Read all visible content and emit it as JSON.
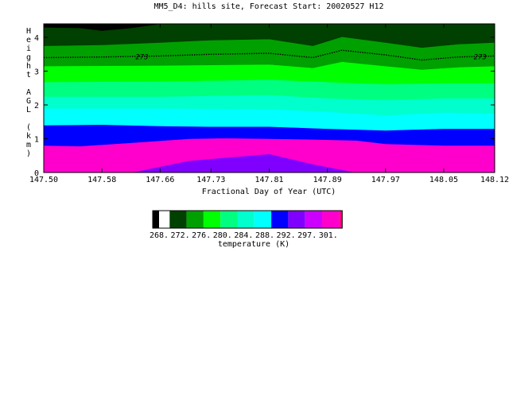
{
  "chart_data": {
    "type": "heatmap",
    "title": "MM5_D4: hills site,  Forecast Start: 20020527 H12",
    "xlabel": "Fractional Day of Year (UTC)",
    "ylabel": "Height AGL (km)",
    "xlim": [
      147.5,
      148.12
    ],
    "ylim": [
      0,
      4.4
    ],
    "x_ticks": [
      "147.50",
      "147.58",
      "147.66",
      "147.73",
      "147.81",
      "147.89",
      "147.97",
      "148.05",
      "148.12"
    ],
    "y_ticks": [
      "0",
      "1",
      "2",
      "3",
      "4"
    ],
    "contour_label": "273",
    "contour_line": [
      {
        "x": 147.5,
        "y": 3.4
      },
      {
        "x": 147.58,
        "y": 3.42
      },
      {
        "x": 147.66,
        "y": 3.45
      },
      {
        "x": 147.73,
        "y": 3.5
      },
      {
        "x": 147.81,
        "y": 3.53
      },
      {
        "x": 147.87,
        "y": 3.4
      },
      {
        "x": 147.91,
        "y": 3.62
      },
      {
        "x": 147.97,
        "y": 3.48
      },
      {
        "x": 148.02,
        "y": 3.33
      },
      {
        "x": 148.07,
        "y": 3.42
      },
      {
        "x": 148.12,
        "y": 3.45
      }
    ],
    "colorbar": {
      "label": "temperature (K)",
      "tick_labels": [
        "268.",
        "272.",
        "276.",
        "280.",
        "284.",
        "288.",
        "292.",
        "297.",
        "301."
      ],
      "colors": [
        "#000000",
        "#004000",
        "#00a000",
        "#00ff00",
        "#00ff80",
        "#00ffcc",
        "#00ffff",
        "#0000ff",
        "#8000ff",
        "#cc00ff",
        "#ff00cc",
        "#ff0080"
      ]
    },
    "bands": [
      {
        "color": "#0000ff",
        "points": [
          [
            147.5,
            0.0
          ],
          [
            148.12,
            0.0
          ]
        ]
      },
      {
        "color": "#8000ff",
        "points": [
          [
            147.5,
            0.2
          ],
          [
            147.56,
            0.18
          ],
          [
            147.6,
            0.0
          ],
          [
            147.98,
            0.0
          ],
          [
            148.0,
            0.15
          ],
          [
            148.12,
            0.15
          ]
        ]
      },
      {
        "color": "#cc00ff",
        "points": [
          [
            147.5,
            0.0
          ],
          [
            147.6,
            0.0
          ],
          [
            147.65,
            0.3
          ],
          [
            147.73,
            0.6
          ],
          [
            147.81,
            0.7
          ],
          [
            147.89,
            0.35
          ],
          [
            147.95,
            0.15
          ],
          [
            147.98,
            0.0
          ],
          [
            148.12,
            0.0
          ]
        ]
      },
      {
        "color": "#ff00cc",
        "points": [
          [
            147.5,
            0.0
          ],
          [
            147.62,
            0.0
          ],
          [
            147.7,
            0.35
          ],
          [
            147.81,
            0.55
          ],
          [
            147.87,
            0.25
          ],
          [
            147.93,
            0.0
          ],
          [
            148.12,
            0.0
          ]
        ]
      },
      {
        "color": "#0000ff",
        "points": [
          [
            147.5,
            0.8
          ],
          [
            147.55,
            0.78
          ],
          [
            147.62,
            0.88
          ],
          [
            147.7,
            1.0
          ],
          [
            147.75,
            1.02
          ],
          [
            147.81,
            1.0
          ],
          [
            147.87,
            0.98
          ],
          [
            147.93,
            0.95
          ],
          [
            147.97,
            0.85
          ],
          [
            148.05,
            0.8
          ],
          [
            148.12,
            0.8
          ]
        ]
      },
      {
        "color": "#00ffff",
        "points": [
          [
            147.5,
            1.4
          ],
          [
            147.58,
            1.42
          ],
          [
            147.66,
            1.38
          ],
          [
            147.73,
            1.36
          ],
          [
            147.81,
            1.36
          ],
          [
            147.89,
            1.3
          ],
          [
            147.97,
            1.25
          ],
          [
            148.05,
            1.3
          ],
          [
            148.12,
            1.3
          ]
        ]
      },
      {
        "color": "#00ffcc",
        "points": [
          [
            147.5,
            1.9
          ],
          [
            147.66,
            1.9
          ],
          [
            147.81,
            1.88
          ],
          [
            147.89,
            1.8
          ],
          [
            147.97,
            1.7
          ],
          [
            148.05,
            1.78
          ],
          [
            148.12,
            1.75
          ]
        ]
      },
      {
        "color": "#00ff80",
        "points": [
          [
            147.5,
            2.25
          ],
          [
            147.66,
            2.25
          ],
          [
            147.81,
            2.3
          ],
          [
            147.89,
            2.2
          ],
          [
            147.97,
            2.15
          ],
          [
            148.05,
            2.2
          ],
          [
            148.12,
            2.2
          ]
        ]
      },
      {
        "color": "#00ff00",
        "points": [
          [
            147.5,
            2.68
          ],
          [
            147.66,
            2.7
          ],
          [
            147.81,
            2.75
          ],
          [
            147.89,
            2.68
          ],
          [
            147.97,
            2.62
          ],
          [
            148.05,
            2.65
          ],
          [
            148.12,
            2.65
          ]
        ]
      },
      {
        "color": "#00a000",
        "points": [
          [
            147.5,
            3.15
          ],
          [
            147.66,
            3.17
          ],
          [
            147.81,
            3.2
          ],
          [
            147.87,
            3.1
          ],
          [
            147.91,
            3.28
          ],
          [
            147.97,
            3.15
          ],
          [
            148.02,
            3.05
          ],
          [
            148.07,
            3.12
          ],
          [
            148.12,
            3.15
          ]
        ]
      },
      {
        "color": "#004000",
        "points": [
          [
            147.5,
            3.75
          ],
          [
            147.58,
            3.78
          ],
          [
            147.66,
            3.85
          ],
          [
            147.73,
            3.92
          ],
          [
            147.81,
            3.95
          ],
          [
            147.87,
            3.75
          ],
          [
            147.91,
            4.02
          ],
          [
            147.97,
            3.85
          ],
          [
            148.02,
            3.7
          ],
          [
            148.07,
            3.8
          ],
          [
            148.12,
            3.85
          ]
        ]
      },
      {
        "color": "#000000",
        "points": [
          [
            147.5,
            4.3
          ],
          [
            147.55,
            4.28
          ],
          [
            147.58,
            4.2
          ],
          [
            147.62,
            4.28
          ],
          [
            147.66,
            4.4
          ],
          [
            148.12,
            4.4
          ]
        ]
      }
    ]
  }
}
